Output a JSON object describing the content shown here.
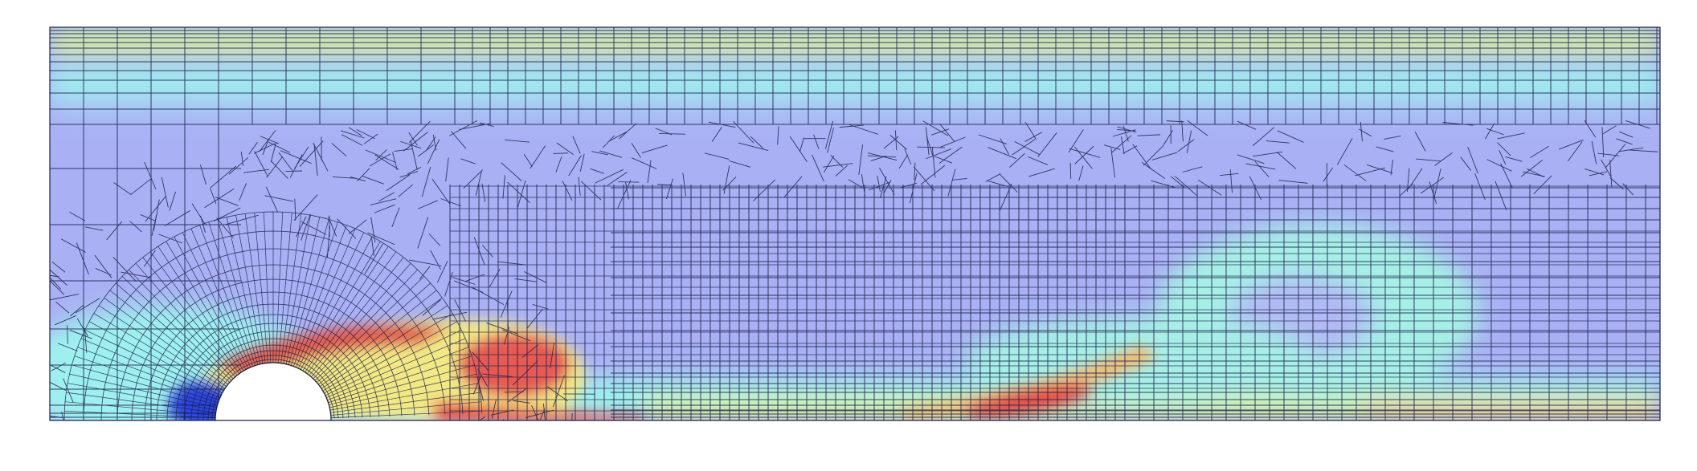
{
  "figure": {
    "subject": "cfd-mesh-flow-past-cylinder",
    "colormap": [
      "#00007f",
      "#2b4cff",
      "#a8b0f6",
      "#9ef0ee",
      "#b8f5a6",
      "#f2f08a",
      "#f3b27a",
      "#e34a4a"
    ],
    "background": "#ffffff",
    "mesh_line_color": "#1b1e4a",
    "cylinder_fill": "#ffffff"
  }
}
